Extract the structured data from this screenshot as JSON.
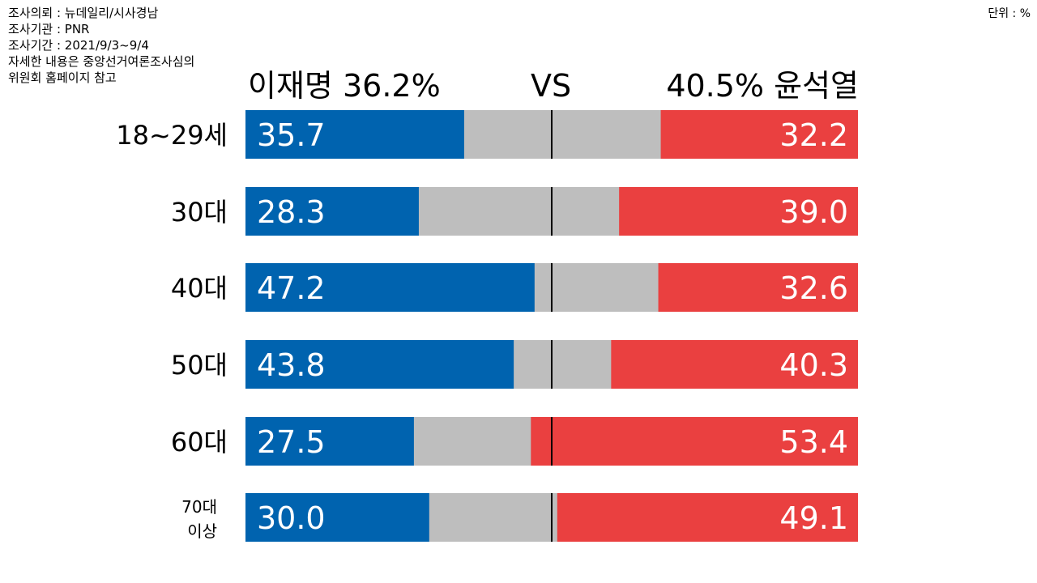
{
  "meta": {
    "lines": [
      "조사의뢰 : 뉴데일리/시사경남",
      "조사기관 : PNR",
      "조사기간 : 2021/9/3~9/4",
      "자세한 내용은 중앙선거여론조사심의",
      "위원회 홈페이지 참고"
    ],
    "unit": "단위 : %"
  },
  "header": {
    "left": "이재명 36.2%",
    "vs": "VS",
    "right": "40.5% 윤석열"
  },
  "chart_data": {
    "type": "bar",
    "stacked": "diverging",
    "categories": [
      "18~29세",
      "30대",
      "40대",
      "50대",
      "60대",
      "70대 이상"
    ],
    "category_lines": [
      [
        "18~29세"
      ],
      [
        "30대"
      ],
      [
        "40대"
      ],
      [
        "50대"
      ],
      [
        "60대"
      ],
      [
        "70대",
        "이상"
      ]
    ],
    "series": [
      {
        "name": "이재명",
        "color": "#0063AF",
        "values": [
          35.7,
          28.3,
          47.2,
          43.8,
          27.5,
          30.0
        ]
      },
      {
        "name": "윤석열",
        "color": "#EA4040",
        "values": [
          32.2,
          39.0,
          32.6,
          40.3,
          53.4,
          49.1
        ]
      }
    ],
    "value_labels_left": [
      "35.7",
      "28.3",
      "47.2",
      "43.8",
      "27.5",
      "30.0"
    ],
    "value_labels_right": [
      "32.2",
      "39.0",
      "32.6",
      "40.3",
      "53.4",
      "49.1"
    ],
    "other_color": "#BEBEBE",
    "xlim": [
      0,
      100
    ],
    "unit": "%"
  }
}
